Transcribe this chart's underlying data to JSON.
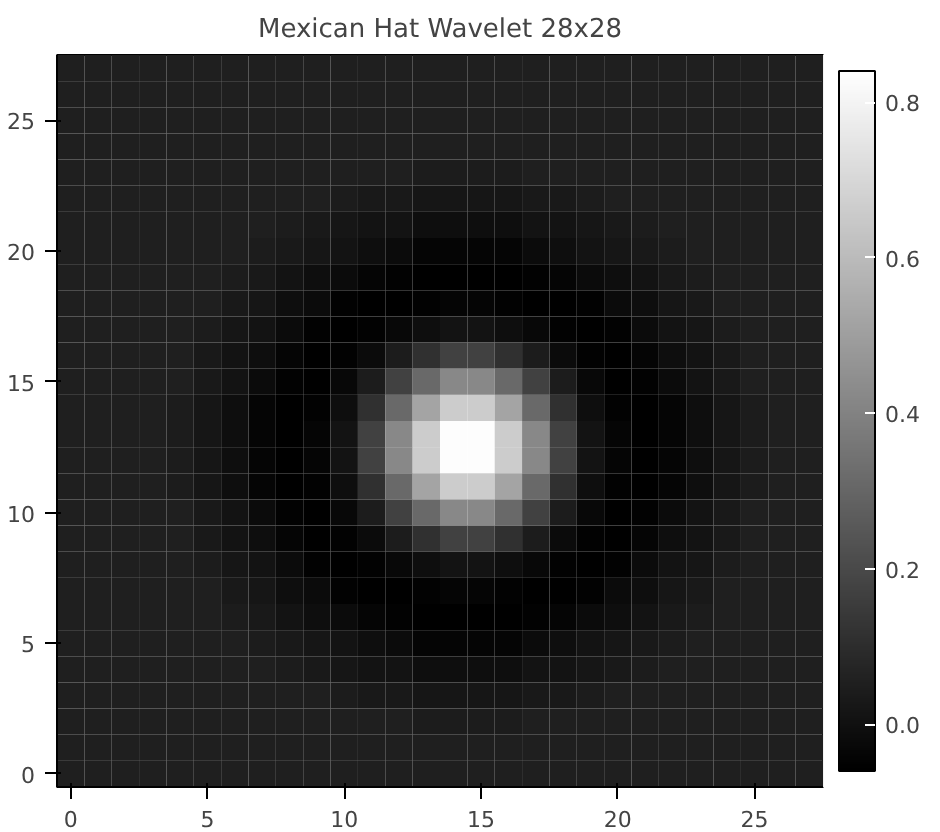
{
  "chart_data": {
    "type": "heatmap",
    "title": "Mexican Hat Wavelet 28x28",
    "categories": [
      "0",
      null,
      null,
      null,
      null,
      "5",
      null,
      null,
      null,
      null,
      "10",
      null,
      null,
      null,
      null,
      "15",
      null,
      null,
      null,
      null,
      "20",
      null,
      null,
      null,
      null,
      "25",
      null,
      null
    ],
    "y_categories": [
      null,
      null,
      "25",
      null,
      null,
      null,
      null,
      "20",
      null,
      null,
      null,
      null,
      "15",
      null,
      null,
      null,
      null,
      "10",
      null,
      null,
      null,
      null,
      "5",
      null,
      null,
      null,
      null,
      "0"
    ],
    "clim": [
      -0.06,
      0.84
    ],
    "cticks": [
      {
        "value": 0,
        "label": "0.0"
      },
      {
        "value": 0.2,
        "label": "0.2"
      },
      {
        "value": 0.4,
        "label": "0.4"
      },
      {
        "value": 0.6,
        "label": "0.6"
      },
      {
        "value": 0.8,
        "label": "0.8"
      }
    ],
    "cells": [
      [
        0.05,
        0.05,
        0.05,
        0.05,
        0.05,
        0.05,
        0.05,
        0.05,
        0.05,
        0.05,
        0.05,
        0.05,
        0.05,
        0.05,
        0.05,
        0.05,
        0.05,
        0.05,
        0.05,
        0.05,
        0.05,
        0.05,
        0.05,
        0.05,
        0.05,
        0.05,
        0.05,
        0.05
      ],
      [
        0.05,
        0.05,
        0.05,
        0.05,
        0.05,
        0.05,
        0.05,
        0.05,
        0.05,
        0.05,
        0.05,
        0.05,
        0.05,
        0.05,
        0.05,
        0.05,
        0.05,
        0.05,
        0.05,
        0.05,
        0.05,
        0.05,
        0.05,
        0.05,
        0.05,
        0.05,
        0.05,
        0.05
      ],
      [
        0.05,
        0.05,
        0.05,
        0.05,
        0.05,
        0.05,
        0.05,
        0.05,
        0.05,
        0.05,
        0.05,
        0.05,
        0.05,
        0.05,
        0.05,
        0.05,
        0.05,
        0.05,
        0.05,
        0.05,
        0.05,
        0.05,
        0.05,
        0.05,
        0.05,
        0.05,
        0.05,
        0.05
      ],
      [
        0.05,
        0.05,
        0.05,
        0.05,
        0.05,
        0.05,
        0.05,
        0.05,
        0.05,
        0.05,
        0.05,
        0.05,
        0.05,
        0.05,
        0.05,
        0.05,
        0.05,
        0.05,
        0.05,
        0.05,
        0.05,
        0.05,
        0.05,
        0.05,
        0.05,
        0.05,
        0.05,
        0.05
      ],
      [
        0.05,
        0.05,
        0.05,
        0.05,
        0.05,
        0.05,
        0.05,
        0.05,
        0.05,
        0.05,
        0.05,
        0.05,
        0.05,
        0.04,
        0.04,
        0.04,
        0.04,
        0.05,
        0.05,
        0.05,
        0.05,
        0.05,
        0.05,
        0.05,
        0.05,
        0.05,
        0.05,
        0.05
      ],
      [
        0.05,
        0.05,
        0.05,
        0.05,
        0.05,
        0.05,
        0.05,
        0.05,
        0.05,
        0.05,
        0.04,
        0.03,
        0.03,
        0.02,
        0.02,
        0.02,
        0.02,
        0.03,
        0.03,
        0.04,
        0.05,
        0.05,
        0.05,
        0.05,
        0.05,
        0.05,
        0.05,
        0.05
      ],
      [
        0.05,
        0.05,
        0.05,
        0.05,
        0.05,
        0.05,
        0.05,
        0.05,
        0.04,
        0.03,
        0.02,
        0.01,
        0.01,
        -0.01,
        -0.01,
        -0.01,
        -0.01,
        0.01,
        0.01,
        0.02,
        0.03,
        0.04,
        0.05,
        0.05,
        0.05,
        0.05,
        0.05,
        0.05
      ],
      [
        0.05,
        0.05,
        0.05,
        0.05,
        0.05,
        0.05,
        0.05,
        0.04,
        0.03,
        0.02,
        0.01,
        -0.01,
        -0.02,
        -0.04,
        -0.04,
        -0.04,
        -0.04,
        -0.02,
        -0.01,
        0.01,
        0.02,
        0.03,
        0.04,
        0.05,
        0.05,
        0.05,
        0.05,
        0.05
      ],
      [
        0.05,
        0.05,
        0.05,
        0.05,
        0.05,
        0.05,
        0.04,
        0.03,
        0.01,
        -0.01,
        -0.02,
        -0.04,
        -0.05,
        -0.06,
        -0.06,
        -0.06,
        -0.06,
        -0.05,
        -0.04,
        -0.02,
        -0.01,
        0.01,
        0.03,
        0.04,
        0.05,
        0.05,
        0.05,
        0.05
      ],
      [
        0.05,
        0.05,
        0.05,
        0.05,
        0.05,
        0.05,
        0.03,
        0.02,
        -0.01,
        -0.02,
        -0.05,
        -0.06,
        -0.06,
        -0.05,
        -0.04,
        -0.04,
        -0.05,
        -0.06,
        -0.06,
        -0.05,
        -0.02,
        -0.01,
        0.02,
        0.03,
        0.05,
        0.05,
        0.05,
        0.05
      ],
      [
        0.05,
        0.05,
        0.05,
        0.05,
        0.05,
        0.04,
        0.02,
        0.01,
        -0.02,
        -0.05,
        -0.06,
        -0.05,
        -0.03,
        -0.01,
        0.01,
        0.01,
        -0.01,
        -0.03,
        -0.05,
        -0.06,
        -0.05,
        -0.02,
        0.01,
        0.02,
        0.04,
        0.05,
        0.05,
        0.05
      ],
      [
        0.05,
        0.05,
        0.05,
        0.05,
        0.05,
        0.03,
        0.01,
        -0.01,
        -0.04,
        -0.06,
        -0.05,
        -0.02,
        0.04,
        0.11,
        0.17,
        0.17,
        0.11,
        0.04,
        -0.02,
        -0.05,
        -0.06,
        -0.04,
        -0.01,
        0.01,
        0.03,
        0.05,
        0.05,
        0.05
      ],
      [
        0.05,
        0.05,
        0.05,
        0.05,
        0.05,
        0.03,
        0.01,
        -0.02,
        -0.05,
        -0.06,
        -0.03,
        0.04,
        0.17,
        0.31,
        0.42,
        0.42,
        0.31,
        0.17,
        0.04,
        -0.03,
        -0.06,
        -0.05,
        -0.02,
        0.01,
        0.03,
        0.05,
        0.05,
        0.05
      ],
      [
        0.05,
        0.05,
        0.05,
        0.05,
        0.04,
        0.02,
        -0.01,
        -0.04,
        -0.06,
        -0.05,
        -0.01,
        0.11,
        0.31,
        0.52,
        0.66,
        0.66,
        0.52,
        0.31,
        0.11,
        -0.01,
        -0.05,
        -0.06,
        -0.04,
        -0.01,
        0.02,
        0.04,
        0.05,
        0.05
      ],
      [
        0.05,
        0.05,
        0.05,
        0.05,
        0.04,
        0.02,
        -0.01,
        -0.04,
        -0.06,
        -0.04,
        0.01,
        0.17,
        0.42,
        0.66,
        0.83,
        0.83,
        0.66,
        0.42,
        0.17,
        0.01,
        -0.04,
        -0.06,
        -0.04,
        -0.01,
        0.02,
        0.04,
        0.05,
        0.05
      ],
      [
        0.05,
        0.05,
        0.05,
        0.05,
        0.04,
        0.02,
        -0.01,
        -0.04,
        -0.06,
        -0.04,
        0.01,
        0.17,
        0.42,
        0.66,
        0.83,
        0.83,
        0.66,
        0.42,
        0.17,
        0.01,
        -0.04,
        -0.06,
        -0.04,
        -0.01,
        0.02,
        0.04,
        0.05,
        0.05
      ],
      [
        0.05,
        0.05,
        0.05,
        0.05,
        0.04,
        0.02,
        -0.01,
        -0.04,
        -0.06,
        -0.05,
        -0.01,
        0.11,
        0.31,
        0.52,
        0.66,
        0.66,
        0.52,
        0.31,
        0.11,
        -0.01,
        -0.05,
        -0.06,
        -0.04,
        -0.01,
        0.02,
        0.04,
        0.05,
        0.05
      ],
      [
        0.05,
        0.05,
        0.05,
        0.05,
        0.05,
        0.03,
        0.01,
        -0.02,
        -0.05,
        -0.06,
        -0.03,
        0.04,
        0.17,
        0.31,
        0.42,
        0.42,
        0.31,
        0.17,
        0.04,
        -0.03,
        -0.06,
        -0.05,
        -0.02,
        0.01,
        0.03,
        0.05,
        0.05,
        0.05
      ],
      [
        0.05,
        0.05,
        0.05,
        0.05,
        0.05,
        0.03,
        0.01,
        -0.01,
        -0.04,
        -0.06,
        -0.05,
        -0.02,
        0.04,
        0.11,
        0.17,
        0.17,
        0.11,
        0.04,
        -0.02,
        -0.05,
        -0.06,
        -0.04,
        -0.01,
        0.01,
        0.03,
        0.05,
        0.05,
        0.05
      ],
      [
        0.05,
        0.05,
        0.05,
        0.05,
        0.05,
        0.04,
        0.02,
        0.01,
        -0.02,
        -0.05,
        -0.06,
        -0.05,
        -0.03,
        -0.01,
        0.01,
        0.01,
        -0.01,
        -0.03,
        -0.05,
        -0.06,
        -0.05,
        -0.02,
        0.01,
        0.02,
        0.04,
        0.05,
        0.05,
        0.05
      ],
      [
        0.05,
        0.05,
        0.05,
        0.05,
        0.05,
        0.05,
        0.03,
        0.02,
        -0.01,
        -0.02,
        -0.05,
        -0.06,
        -0.06,
        -0.05,
        -0.04,
        -0.04,
        -0.05,
        -0.06,
        -0.06,
        -0.05,
        -0.02,
        -0.01,
        0.02,
        0.03,
        0.05,
        0.05,
        0.05,
        0.05
      ],
      [
        0.05,
        0.05,
        0.05,
        0.05,
        0.05,
        0.05,
        0.04,
        0.03,
        0.01,
        -0.01,
        -0.02,
        -0.04,
        -0.05,
        -0.06,
        -0.06,
        -0.06,
        -0.06,
        -0.05,
        -0.04,
        -0.02,
        -0.01,
        0.01,
        0.03,
        0.04,
        0.05,
        0.05,
        0.05,
        0.05
      ],
      [
        0.05,
        0.05,
        0.05,
        0.05,
        0.05,
        0.05,
        0.05,
        0.04,
        0.03,
        0.02,
        0.01,
        -0.01,
        -0.02,
        -0.04,
        -0.04,
        -0.04,
        -0.04,
        -0.02,
        -0.01,
        0.01,
        0.02,
        0.03,
        0.04,
        0.05,
        0.05,
        0.05,
        0.05,
        0.05
      ],
      [
        0.05,
        0.05,
        0.05,
        0.05,
        0.05,
        0.05,
        0.05,
        0.05,
        0.04,
        0.03,
        0.02,
        0.01,
        0.01,
        -0.01,
        -0.01,
        -0.01,
        -0.01,
        0.01,
        0.01,
        0.02,
        0.03,
        0.04,
        0.05,
        0.05,
        0.05,
        0.05,
        0.05,
        0.05
      ],
      [
        0.05,
        0.05,
        0.05,
        0.05,
        0.05,
        0.05,
        0.05,
        0.05,
        0.05,
        0.05,
        0.04,
        0.03,
        0.03,
        0.02,
        0.02,
        0.02,
        0.02,
        0.03,
        0.03,
        0.04,
        0.05,
        0.05,
        0.05,
        0.05,
        0.05,
        0.05,
        0.05,
        0.05
      ],
      [
        0.05,
        0.05,
        0.05,
        0.05,
        0.05,
        0.05,
        0.05,
        0.05,
        0.05,
        0.05,
        0.05,
        0.05,
        0.05,
        0.04,
        0.04,
        0.04,
        0.04,
        0.05,
        0.05,
        0.05,
        0.05,
        0.05,
        0.05,
        0.05,
        0.05,
        0.05,
        0.05,
        0.05
      ],
      [
        0.05,
        0.05,
        0.05,
        0.05,
        0.05,
        0.05,
        0.05,
        0.05,
        0.05,
        0.05,
        0.05,
        0.05,
        0.05,
        0.05,
        0.05,
        0.05,
        0.05,
        0.05,
        0.05,
        0.05,
        0.05,
        0.05,
        0.05,
        0.05,
        0.05,
        0.05,
        0.05,
        0.05
      ],
      [
        0.05,
        0.05,
        0.05,
        0.05,
        0.05,
        0.05,
        0.05,
        0.05,
        0.05,
        0.05,
        0.05,
        0.05,
        0.05,
        0.05,
        0.05,
        0.05,
        0.05,
        0.05,
        0.05,
        0.05,
        0.05,
        0.05,
        0.05,
        0.05,
        0.05,
        0.05,
        0.05,
        0.05
      ]
    ]
  }
}
